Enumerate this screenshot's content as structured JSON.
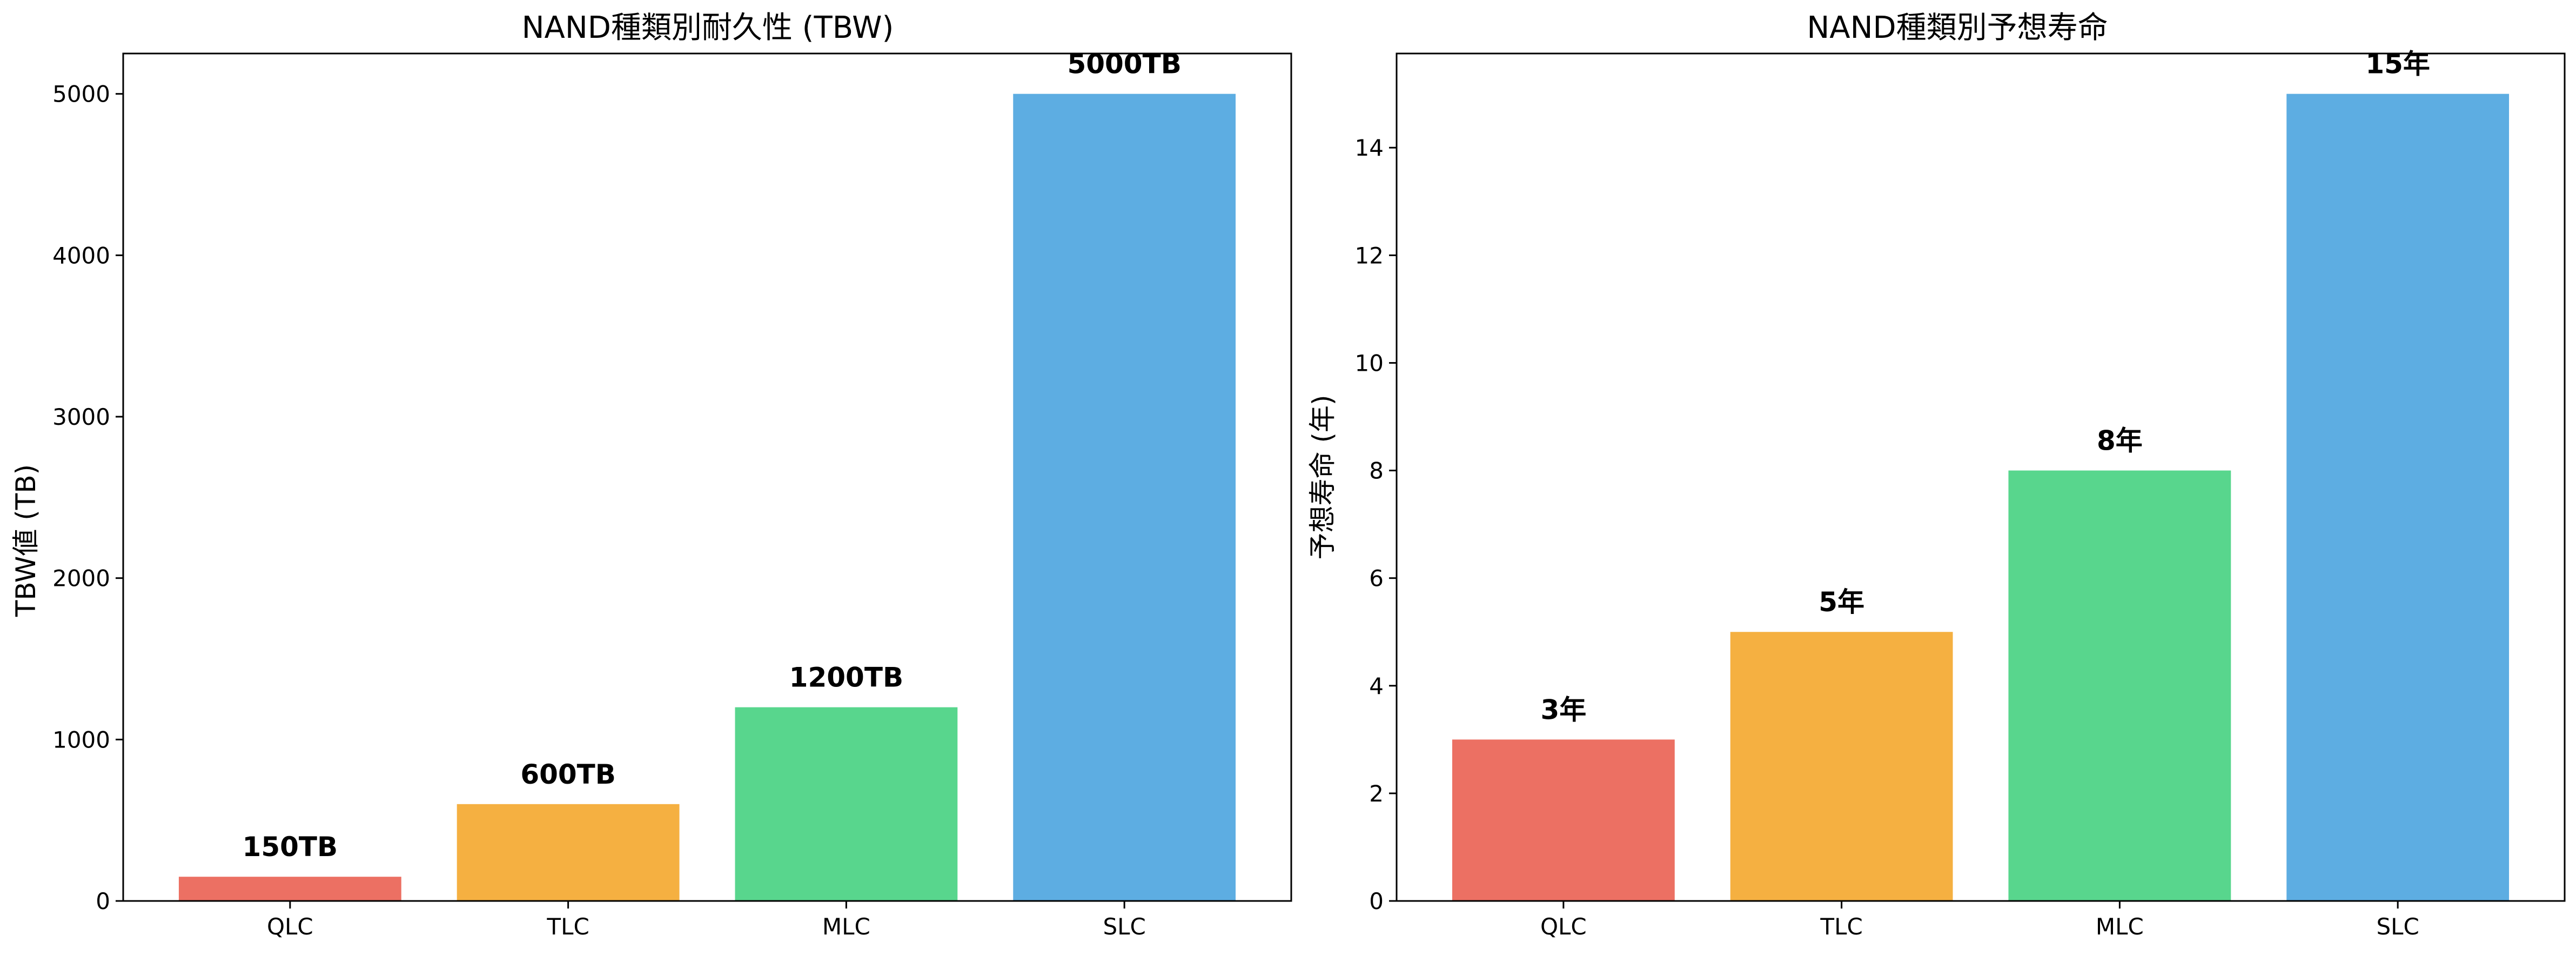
{
  "chart_data": [
    {
      "type": "bar",
      "title": "NAND種類別耐久性 (TBW)",
      "xlabel": "",
      "ylabel": "TBW値 (TB)",
      "categories": [
        "QLC",
        "TLC",
        "MLC",
        "SLC"
      ],
      "values": [
        150,
        600,
        1200,
        5000
      ],
      "data_labels": [
        "150TB",
        "600TB",
        "1200TB",
        "5000TB"
      ],
      "colors": [
        "#ec7063",
        "#f5b041",
        "#58d68d",
        "#5dade2"
      ],
      "ylim": [
        0,
        5250
      ],
      "yticks": [
        0,
        1000,
        2000,
        3000,
        4000,
        5000
      ],
      "ytick_labels": [
        "0",
        "1000",
        "2000",
        "3000",
        "4000",
        "5000"
      ],
      "grid": false
    },
    {
      "type": "bar",
      "title": "NAND種類別予想寿命",
      "xlabel": "",
      "ylabel": "予想寿命 (年)",
      "categories": [
        "QLC",
        "TLC",
        "MLC",
        "SLC"
      ],
      "values": [
        3,
        5,
        8,
        15
      ],
      "data_labels": [
        "3年",
        "5年",
        "8年",
        "15年"
      ],
      "colors": [
        "#ec7063",
        "#f5b041",
        "#58d68d",
        "#5dade2"
      ],
      "ylim": [
        0,
        15.75
      ],
      "yticks": [
        0,
        2,
        4,
        6,
        8,
        10,
        12,
        14
      ],
      "ytick_labels": [
        "0",
        "2",
        "4",
        "6",
        "8",
        "10",
        "12",
        "14"
      ],
      "grid": false
    }
  ]
}
